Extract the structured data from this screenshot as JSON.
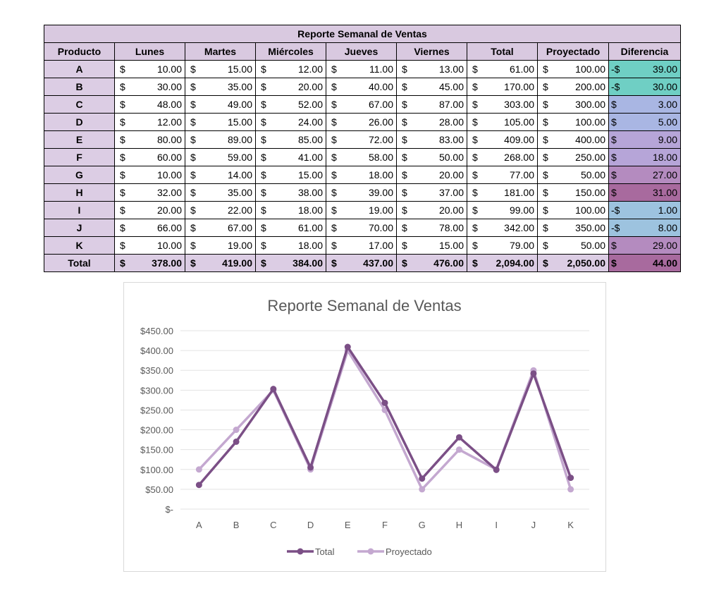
{
  "table": {
    "title": "Reporte Semanal de Ventas",
    "columns": [
      "Producto",
      "Lunes",
      "Martes",
      "Miércoles",
      "Jueves",
      "Viernes",
      "Total",
      "Proyectado",
      "Diferencia"
    ],
    "rows": [
      {
        "producto": "A",
        "values": [
          "10.00",
          "15.00",
          "12.00",
          "11.00",
          "13.00",
          "61.00",
          "100.00"
        ],
        "diff_sign": "-$",
        "diff": "39.00"
      },
      {
        "producto": "B",
        "values": [
          "30.00",
          "35.00",
          "20.00",
          "40.00",
          "45.00",
          "170.00",
          "200.00"
        ],
        "diff_sign": "-$",
        "diff": "30.00"
      },
      {
        "producto": "C",
        "values": [
          "48.00",
          "49.00",
          "52.00",
          "67.00",
          "87.00",
          "303.00",
          "300.00"
        ],
        "diff_sign": "$",
        "diff": "3.00"
      },
      {
        "producto": "D",
        "values": [
          "12.00",
          "15.00",
          "24.00",
          "26.00",
          "28.00",
          "105.00",
          "100.00"
        ],
        "diff_sign": "$",
        "diff": "5.00"
      },
      {
        "producto": "E",
        "values": [
          "80.00",
          "89.00",
          "85.00",
          "72.00",
          "83.00",
          "409.00",
          "400.00"
        ],
        "diff_sign": "$",
        "diff": "9.00"
      },
      {
        "producto": "F",
        "values": [
          "60.00",
          "59.00",
          "41.00",
          "58.00",
          "50.00",
          "268.00",
          "250.00"
        ],
        "diff_sign": "$",
        "diff": "18.00"
      },
      {
        "producto": "G",
        "values": [
          "10.00",
          "14.00",
          "15.00",
          "18.00",
          "20.00",
          "77.00",
          "50.00"
        ],
        "diff_sign": "$",
        "diff": "27.00"
      },
      {
        "producto": "H",
        "values": [
          "32.00",
          "35.00",
          "38.00",
          "39.00",
          "37.00",
          "181.00",
          "150.00"
        ],
        "diff_sign": "$",
        "diff": "31.00"
      },
      {
        "producto": "I",
        "values": [
          "20.00",
          "22.00",
          "18.00",
          "19.00",
          "20.00",
          "99.00",
          "100.00"
        ],
        "diff_sign": "-$",
        "diff": "1.00"
      },
      {
        "producto": "J",
        "values": [
          "66.00",
          "67.00",
          "61.00",
          "70.00",
          "78.00",
          "342.00",
          "350.00"
        ],
        "diff_sign": "-$",
        "diff": "8.00"
      },
      {
        "producto": "K",
        "values": [
          "10.00",
          "19.00",
          "18.00",
          "17.00",
          "15.00",
          "79.00",
          "50.00"
        ],
        "diff_sign": "$",
        "diff": "29.00"
      }
    ],
    "total_row": {
      "producto": "Total",
      "values": [
        "378.00",
        "419.00",
        "384.00",
        "437.00",
        "476.00",
        "2,094.00",
        "2,050.00"
      ],
      "diff_sign": "$",
      "diff": "44.00"
    },
    "currency_symbol": "$",
    "colors": {
      "header_bg": "#d9c9e0",
      "diff_scale_low": "#6fd1c4",
      "diff_scale_mid": "#a9b6e3",
      "diff_scale_high": "#a35f95"
    }
  },
  "chart_data": {
    "type": "line",
    "title": "Reporte Semanal de Ventas",
    "categories": [
      "A",
      "B",
      "C",
      "D",
      "E",
      "F",
      "G",
      "H",
      "I",
      "J",
      "K"
    ],
    "series": [
      {
        "name": "Total",
        "color": "#7b4f86",
        "values": [
          61,
          170,
          303,
          105,
          409,
          268,
          77,
          181,
          99,
          342,
          79
        ]
      },
      {
        "name": "Proyectado",
        "color": "#c4a8d0",
        "values": [
          100,
          200,
          300,
          100,
          400,
          250,
          50,
          150,
          100,
          350,
          50
        ]
      }
    ],
    "ylim": [
      0,
      450
    ],
    "ytick_values": [
      0,
      50,
      100,
      150,
      200,
      250,
      300,
      350,
      400,
      450
    ],
    "ytick_labels": [
      "$-",
      "$50.00",
      "$100.00",
      "$150.00",
      "$200.00",
      "$250.00",
      "$300.00",
      "$350.00",
      "$400.00",
      "$450.00"
    ],
    "grid": true,
    "legend": "bottom"
  }
}
